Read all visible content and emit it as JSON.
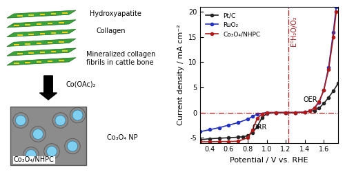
{
  "chart_data": {
    "type": "line",
    "xlabel": "Potential / V vs. RHE",
    "ylabel": "Current density / mA cm⁻²",
    "xlim": [
      0.3,
      1.75
    ],
    "xticks": [
      0.4,
      0.6,
      0.8,
      1.0,
      1.2,
      1.4,
      1.6
    ],
    "ylim": [
      -6,
      21
    ],
    "yticks": [
      -5,
      0,
      5,
      10,
      15,
      20
    ],
    "legend": "upper left",
    "marker": "o",
    "vline": 1.23,
    "vline_label": "E⁰H₂O/O₂",
    "hline": 0,
    "annotations": [
      "OER",
      "ORR"
    ],
    "series": [
      {
        "name": "Pt/C",
        "color": "#222222",
        "x": [
          0.3,
          0.4,
          0.5,
          0.6,
          0.7,
          0.75,
          0.8,
          0.85,
          0.9,
          0.95,
          1.0,
          1.1,
          1.2,
          1.3,
          1.4,
          1.5,
          1.55,
          1.6,
          1.65,
          1.7,
          1.75
        ],
        "values": [
          -5.4,
          -5.2,
          -5.1,
          -5.0,
          -4.9,
          -4.8,
          -4.6,
          -4.0,
          -2.8,
          -1.0,
          -0.2,
          0,
          0,
          0,
          0.1,
          0.4,
          0.9,
          1.8,
          3.0,
          4.3,
          5.8
        ]
      },
      {
        "name": "RuO₂",
        "color": "#2030c0",
        "x": [
          0.3,
          0.4,
          0.5,
          0.6,
          0.7,
          0.8,
          0.85,
          0.9,
          1.0,
          1.1,
          1.2,
          1.3,
          1.4,
          1.45,
          1.5,
          1.55,
          1.6,
          1.65,
          1.7,
          1.73
        ],
        "values": [
          -3.8,
          -3.4,
          -3.0,
          -2.5,
          -2.0,
          -1.3,
          -0.8,
          -0.3,
          0,
          0,
          0,
          0,
          0.1,
          0.3,
          0.9,
          2.0,
          4.5,
          9.0,
          16.0,
          21.0
        ]
      },
      {
        "name": "Co₃O₄/NHPC",
        "color": "#b01818",
        "x": [
          0.3,
          0.4,
          0.5,
          0.6,
          0.7,
          0.8,
          0.85,
          0.9,
          0.95,
          1.0,
          1.1,
          1.2,
          1.3,
          1.4,
          1.45,
          1.5,
          1.55,
          1.6,
          1.65,
          1.7,
          1.73
        ],
        "values": [
          -5.8,
          -5.8,
          -5.75,
          -5.75,
          -5.7,
          -5.0,
          -3.5,
          -1.2,
          -0.3,
          0,
          0,
          0,
          0,
          0.1,
          0.3,
          0.9,
          2.2,
          4.5,
          8.5,
          15.0,
          20.0
        ]
      }
    ]
  },
  "diagram": {
    "top_labels": [
      "Hydroxyapatite",
      "Collagen"
    ],
    "caption": "Mineralized collagen\nfibrils in cattle bone",
    "reagent": "Co(OAc)₂",
    "np_label": "Co₃O₄ NP",
    "product": "Co₃O₄/NHPC"
  }
}
